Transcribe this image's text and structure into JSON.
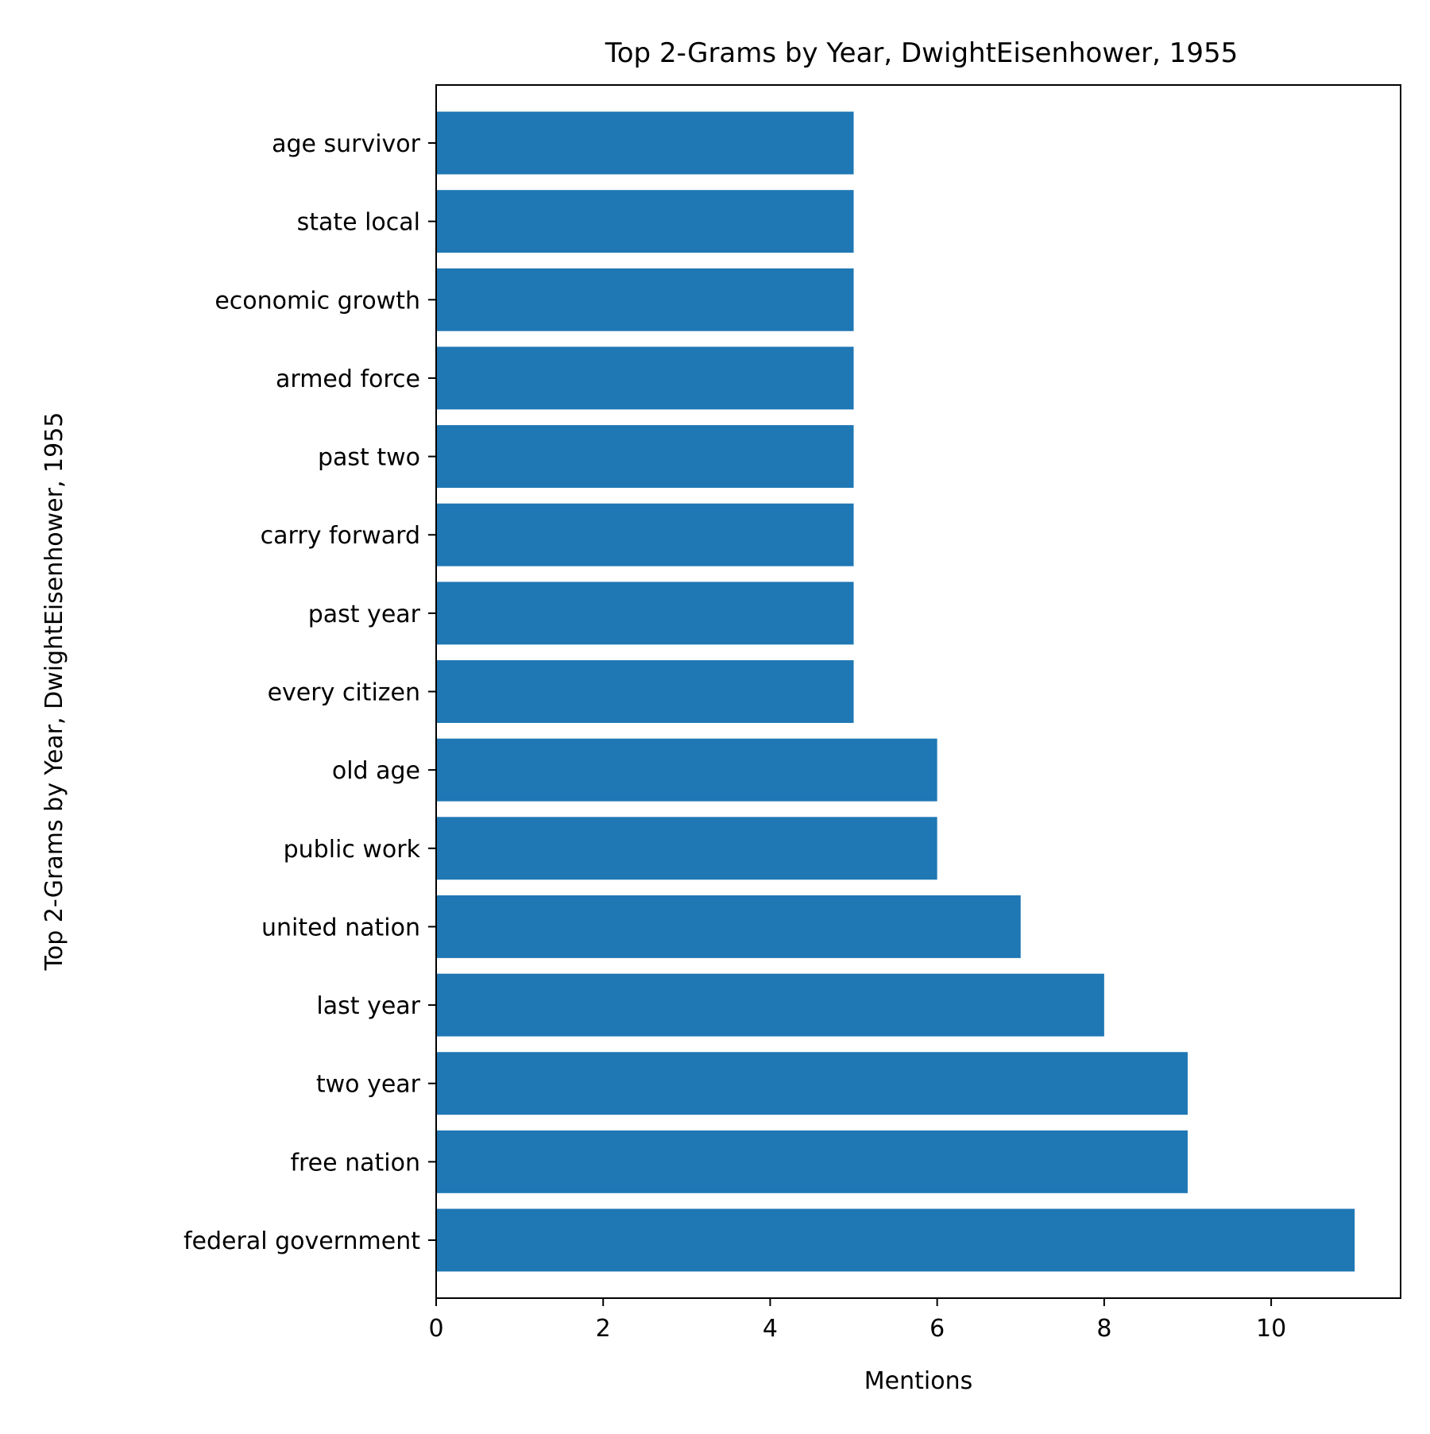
{
  "chart_data": {
    "type": "bar",
    "orientation": "horizontal",
    "title": "Top 2-Grams by Year, DwightEisenhower, 1955",
    "xlabel": "Mentions",
    "ylabel": "Top 2-Grams by Year, DwightEisenhower, 1955",
    "xlim": [
      0,
      11.55
    ],
    "xticks": [
      0,
      2,
      4,
      6,
      8,
      10
    ],
    "grid": false,
    "legend": "none",
    "bar_color": "#1f77b4",
    "categories": [
      "federal government",
      "free nation",
      "two year",
      "last year",
      "united nation",
      "public work",
      "old age",
      "every citizen",
      "past year",
      "carry forward",
      "past two",
      "armed force",
      "economic growth",
      "state local",
      "age survivor"
    ],
    "values": [
      11,
      9,
      9,
      8,
      7,
      6,
      6,
      5,
      5,
      5,
      5,
      5,
      5,
      5,
      5
    ]
  }
}
